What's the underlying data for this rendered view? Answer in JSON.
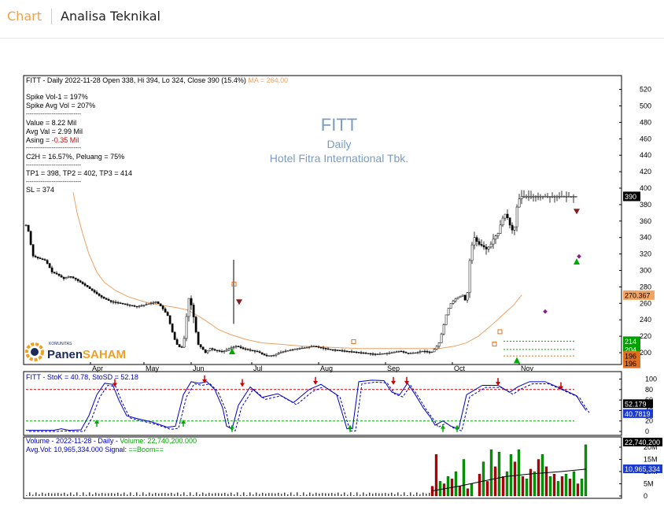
{
  "header": {
    "nav_label": "Chart",
    "title": "Analisa Teknikal"
  },
  "info": {
    "line1": "FITT - Daily 2022-11-28 Open 338, Hi 394, Lo 324, Close 390 (15.4%)",
    "ma_label": "MA = 264.00",
    "spike_vol": "Spike Vol-1    =  197%",
    "spike_avg": "Spike Avg Vol  =  207%",
    "sep": "------------------------------",
    "value": "Value    =  8.22 Mil",
    "avg_val": "Avg Val  =  2.99 Mil",
    "asing_label": "Asing     =",
    "asing_value": "-0.35 Mil",
    "c2h": "C2H  =  16.57%,  Peluang  =  75%",
    "tp": "TP1 = 398, TP2 = 402, TP3 = 414",
    "sl": "SL = 374"
  },
  "watermark": {
    "ticker": "FITT",
    "period": "Daily",
    "company": "Hotel Fitra International Tbk."
  },
  "logo": {
    "top": "KOMUNITAS",
    "part1": "Panen",
    "part2": "SAHAM"
  },
  "colors": {
    "up": "#ffffff",
    "down": "#000000",
    "ma": "#f0a060",
    "stoch_k": "#0000c0",
    "stoch_d": "#0000c0",
    "vol_up": "#00a000",
    "vol_down": "#c00000",
    "red_ref": "#cc0000",
    "green_ref": "#00aa00"
  },
  "chart_data": [
    {
      "type": "candlestick",
      "ticker": "FITT",
      "interval": "Daily",
      "ohlc_last": {
        "date": "2022-11-28",
        "open": 338,
        "high": 394,
        "low": 324,
        "close": 390,
        "change_pct": 15.4
      },
      "ma": 264.0,
      "x_labels": [
        "Apr",
        "May",
        "Jun",
        "Jul",
        "Aug",
        "Sep",
        "Oct",
        "Nov"
      ],
      "ylim": [
        188,
        530
      ],
      "y_ticks": [
        200,
        220,
        240,
        260,
        280,
        300,
        320,
        340,
        360,
        380,
        400,
        420,
        440,
        460,
        480,
        500,
        520
      ],
      "price_path": [
        [
          0,
          355
        ],
        [
          4,
          345
        ],
        [
          8,
          318
        ],
        [
          15,
          315
        ],
        [
          25,
          312
        ],
        [
          33,
          298
        ],
        [
          40,
          295
        ],
        [
          48,
          290
        ],
        [
          55,
          293
        ],
        [
          62,
          290
        ],
        [
          70,
          285
        ],
        [
          78,
          280
        ],
        [
          85,
          275
        ],
        [
          95,
          268
        ],
        [
          108,
          262
        ],
        [
          120,
          260
        ],
        [
          130,
          258
        ],
        [
          140,
          256
        ],
        [
          150,
          258
        ],
        [
          158,
          260
        ],
        [
          165,
          262
        ],
        [
          170,
          258
        ],
        [
          175,
          252
        ],
        [
          180,
          245
        ],
        [
          184,
          232
        ],
        [
          188,
          218
        ],
        [
          192,
          210
        ],
        [
          197,
          205
        ],
        [
          200,
          210
        ],
        [
          203,
          232
        ],
        [
          206,
          268
        ],
        [
          209,
          262
        ],
        [
          212,
          250
        ],
        [
          215,
          230
        ],
        [
          219,
          210
        ],
        [
          224,
          205
        ],
        [
          228,
          200
        ],
        [
          234,
          205
        ],
        [
          240,
          203
        ],
        [
          250,
          201
        ],
        [
          260,
          206
        ],
        [
          268,
          208
        ],
        [
          275,
          205
        ],
        [
          285,
          203
        ],
        [
          295,
          201
        ],
        [
          305,
          196
        ],
        [
          315,
          197
        ],
        [
          325,
          201
        ],
        [
          335,
          203
        ],
        [
          345,
          205
        ],
        [
          355,
          206
        ],
        [
          365,
          208
        ],
        [
          375,
          206
        ],
        [
          385,
          204
        ],
        [
          395,
          203
        ],
        [
          405,
          202
        ],
        [
          415,
          201
        ],
        [
          425,
          200
        ],
        [
          435,
          199
        ],
        [
          445,
          198
        ],
        [
          455,
          199
        ],
        [
          465,
          200
        ],
        [
          475,
          202
        ],
        [
          485,
          199
        ],
        [
          495,
          200
        ],
        [
          505,
          202
        ],
        [
          515,
          200
        ],
        [
          520,
          205
        ],
        [
          525,
          212
        ],
        [
          530,
          230
        ],
        [
          535,
          250
        ],
        [
          540,
          260
        ],
        [
          545,
          265
        ],
        [
          550,
          268
        ],
        [
          555,
          270
        ],
        [
          560,
          260
        ],
        [
          565,
          325
        ],
        [
          570,
          340
        ],
        [
          575,
          332
        ],
        [
          580,
          330
        ],
        [
          585,
          326
        ],
        [
          590,
          330
        ],
        [
          595,
          340
        ],
        [
          600,
          345
        ],
        [
          605,
          362
        ],
        [
          610,
          370
        ],
        [
          615,
          355
        ],
        [
          620,
          345
        ],
        [
          625,
          385
        ],
        [
          630,
          390
        ]
      ],
      "ma_path": [
        [
          60,
          395
        ],
        [
          65,
          370
        ],
        [
          72,
          345
        ],
        [
          80,
          320
        ],
        [
          90,
          298
        ],
        [
          100,
          285
        ],
        [
          115,
          275
        ],
        [
          130,
          268
        ],
        [
          150,
          262
        ],
        [
          170,
          258
        ],
        [
          190,
          255
        ],
        [
          205,
          252
        ],
        [
          215,
          247
        ],
        [
          230,
          238
        ],
        [
          245,
          228
        ],
        [
          260,
          222
        ],
        [
          280,
          216
        ],
        [
          300,
          212
        ],
        [
          325,
          210
        ],
        [
          350,
          208
        ],
        [
          375,
          207
        ],
        [
          400,
          206
        ],
        [
          425,
          205
        ],
        [
          450,
          205
        ],
        [
          475,
          205
        ],
        [
          500,
          205
        ],
        [
          525,
          205
        ],
        [
          545,
          208
        ],
        [
          560,
          212
        ],
        [
          575,
          220
        ],
        [
          590,
          232
        ],
        [
          605,
          245
        ],
        [
          620,
          258
        ],
        [
          630,
          270
        ]
      ],
      "markers": [
        {
          "type": "open-square",
          "color": "#e07020",
          "x": 265,
          "y": 283
        },
        {
          "type": "open-square",
          "color": "#e07020",
          "x": 417,
          "y": 213
        },
        {
          "type": "open-square",
          "color": "#e07020",
          "x": 596,
          "y": 210
        },
        {
          "type": "open-square",
          "color": "#e07020",
          "x": 603,
          "y": 225
        },
        {
          "type": "down-arrow",
          "color": "#8b1a1a",
          "x": 271,
          "y": 262
        },
        {
          "type": "down-arrow",
          "color": "#8b1a1a",
          "x": 700,
          "y": 372
        },
        {
          "type": "up-arrow",
          "color": "#00aa00",
          "x": 262,
          "y": 201
        },
        {
          "type": "up-arrow",
          "color": "#00aa00",
          "x": 624,
          "y": 190
        },
        {
          "type": "up-arrow",
          "color": "#00aa00",
          "x": 700,
          "y": 310
        },
        {
          "type": "dot",
          "color": "#8b1a8b",
          "x": 660,
          "y": 250
        },
        {
          "type": "dot",
          "color": "#8b1a8b",
          "x": 703,
          "y": 317
        }
      ],
      "price_tags": [
        {
          "value": "390",
          "bg": "#000000",
          "fg": "#ffffff",
          "at": 390
        },
        {
          "value": "270.367",
          "bg": "#f4a460",
          "fg": "#000000",
          "at": 270
        },
        {
          "value": "214",
          "bg": "#00a000",
          "fg": "#ffffff",
          "at": 214
        },
        {
          "value": "204",
          "bg": "#00a000",
          "fg": "#ffffff",
          "at": 204
        },
        {
          "value": "196",
          "bg": "#e07020",
          "fg": "#000000",
          "at": 196
        },
        {
          "value": "196",
          "bg": "#e07020",
          "fg": "#000000",
          "at": 187
        }
      ],
      "ref_lines": [
        {
          "value": 214,
          "color": "#00aa00"
        },
        {
          "value": 204,
          "color": "#00aa00"
        },
        {
          "value": 196,
          "color": "#e07020"
        }
      ]
    },
    {
      "type": "line",
      "title": "FITT - StoK = 40.78, StoSD = 52.18",
      "ylim": [
        0,
        105
      ],
      "y_ticks": [
        0,
        20,
        40,
        60,
        80,
        100
      ],
      "levels": {
        "upper": 80,
        "lower": 20
      },
      "tags": [
        {
          "value": "52.179",
          "bg": "#000000",
          "fg": "#ffffff"
        },
        {
          "value": "40.7819",
          "bg": "#1a3ad1",
          "fg": "#ffffff"
        }
      ],
      "series": [
        {
          "values": [
            [
              0,
              2
            ],
            [
              20,
              2
            ],
            [
              35,
              2
            ],
            [
              45,
              5
            ],
            [
              55,
              2
            ],
            [
              70,
              3
            ],
            [
              80,
              30
            ],
            [
              90,
              70
            ],
            [
              100,
              92
            ],
            [
              110,
              90
            ],
            [
              118,
              60
            ],
            [
              128,
              30
            ],
            [
              140,
              25
            ],
            [
              160,
              18
            ],
            [
              180,
              8
            ],
            [
              190,
              10
            ],
            [
              200,
              70
            ],
            [
              210,
              95
            ],
            [
              220,
              92
            ],
            [
              230,
              95
            ],
            [
              240,
              80
            ],
            [
              250,
              45
            ],
            [
              255,
              10
            ],
            [
              262,
              5
            ],
            [
              270,
              50
            ],
            [
              285,
              85
            ],
            [
              300,
              65
            ],
            [
              320,
              72
            ],
            [
              340,
              55
            ],
            [
              360,
              80
            ],
            [
              375,
              90
            ],
            [
              395,
              70
            ],
            [
              408,
              5
            ],
            [
              415,
              5
            ],
            [
              423,
              95
            ],
            [
              440,
              98
            ],
            [
              455,
              97
            ],
            [
              465,
              75
            ],
            [
              475,
              70
            ],
            [
              485,
              92
            ],
            [
              495,
              70
            ],
            [
              505,
              45
            ],
            [
              515,
              25
            ],
            [
              520,
              12
            ],
            [
              530,
              20
            ],
            [
              540,
              10
            ],
            [
              550,
              5
            ],
            [
              560,
              70
            ],
            [
              580,
              88
            ],
            [
              600,
              88
            ],
            [
              615,
              75
            ],
            [
              625,
              85
            ],
            [
              640,
              95
            ],
            [
              660,
              95
            ],
            [
              680,
              82
            ],
            [
              700,
              68
            ],
            [
              705,
              55
            ],
            [
              712,
              40
            ]
          ]
        }
      ],
      "arrows": [
        {
          "dir": "up",
          "x": 90,
          "v": 15
        },
        {
          "dir": "up",
          "x": 200,
          "v": 15
        },
        {
          "dir": "up",
          "x": 262,
          "v": 5
        },
        {
          "dir": "up",
          "x": 412,
          "v": 5
        },
        {
          "dir": "up",
          "x": 530,
          "v": 5
        },
        {
          "dir": "up",
          "x": 548,
          "v": 5
        },
        {
          "dir": "down",
          "x": 113,
          "v": 88
        },
        {
          "dir": "down",
          "x": 227,
          "v": 95
        },
        {
          "dir": "down",
          "x": 275,
          "v": 88
        },
        {
          "dir": "down",
          "x": 368,
          "v": 92
        },
        {
          "dir": "down",
          "x": 467,
          "v": 92
        },
        {
          "dir": "down",
          "x": 484,
          "v": 92
        },
        {
          "dir": "down",
          "x": 600,
          "v": 90
        },
        {
          "dir": "down",
          "x": 680,
          "v": 82
        }
      ]
    },
    {
      "type": "bar",
      "title": "Volume - 2022-11-28 - Daily - Volume: 22,740,200.000",
      "title_parts": {
        "pre": "Volume - 2022-11-28 - Daily - ",
        "vol": "Volume: 22,740,200.000"
      },
      "avg_label": {
        "pre": "Avg.Vol: 10,965,334.000   Signal: ",
        "sig": "==Boom=="
      },
      "ylim": [
        0,
        21000000
      ],
      "y_ticks": [
        {
          "v": 0,
          "label": "0"
        },
        {
          "v": 5000000,
          "label": "5M"
        },
        {
          "v": 10000000,
          "label": "10M"
        },
        {
          "v": 15000000,
          "label": "15M"
        },
        {
          "v": 20000000,
          "label": "20M"
        }
      ],
      "tags": [
        {
          "value": "22,740,200",
          "bg": "#000000",
          "fg": "#ffffff"
        },
        {
          "value": "10,965,334",
          "bg": "#1a3ad1",
          "fg": "#ffffff"
        }
      ],
      "bars": [
        [
          515,
          4,
          "r"
        ],
        [
          520,
          17,
          "r"
        ],
        [
          525,
          6,
          "g"
        ],
        [
          530,
          5,
          "r"
        ],
        [
          535,
          8,
          "g"
        ],
        [
          540,
          7,
          "r"
        ],
        [
          545,
          10,
          "g"
        ],
        [
          550,
          4,
          "r"
        ],
        [
          555,
          15,
          "g"
        ],
        [
          560,
          3,
          "r"
        ],
        [
          565,
          5,
          "g"
        ],
        [
          575,
          9,
          "r"
        ],
        [
          580,
          14,
          "g"
        ],
        [
          585,
          6,
          "r"
        ],
        [
          590,
          19,
          "g"
        ],
        [
          595,
          12,
          "r"
        ],
        [
          600,
          18,
          "g"
        ],
        [
          605,
          8,
          "r"
        ],
        [
          610,
          10,
          "g"
        ],
        [
          615,
          17,
          "g"
        ],
        [
          620,
          14,
          "r"
        ],
        [
          625,
          19,
          "g"
        ],
        [
          630,
          8,
          "r"
        ],
        [
          635,
          7,
          "g"
        ],
        [
          640,
          11,
          "r"
        ],
        [
          645,
          10,
          "g"
        ],
        [
          650,
          15,
          "r"
        ],
        [
          655,
          17,
          "g"
        ],
        [
          660,
          12,
          "r"
        ],
        [
          665,
          8,
          "g"
        ],
        [
          670,
          9,
          "r"
        ],
        [
          675,
          6,
          "g"
        ],
        [
          680,
          8,
          "r"
        ],
        [
          685,
          9,
          "g"
        ],
        [
          690,
          7,
          "r"
        ],
        [
          695,
          10,
          "g"
        ],
        [
          700,
          5,
          "r"
        ],
        [
          705,
          7,
          "g"
        ],
        [
          710,
          21,
          "g"
        ]
      ],
      "avg_line": [
        [
          515,
          2
        ],
        [
          550,
          4
        ],
        [
          580,
          6
        ],
        [
          610,
          8
        ],
        [
          640,
          9
        ],
        [
          680,
          10
        ],
        [
          712,
          11
        ]
      ]
    }
  ]
}
